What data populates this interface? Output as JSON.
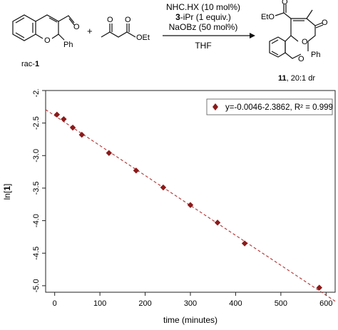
{
  "scheme": {
    "reagents": {
      "line1": "NHC.HX (10 mol%)",
      "line2_bold": "3",
      "line2_rest": "-iPr (1 equiv.)",
      "line3": "NaOBz (50 mol%)",
      "solvent": "THF"
    },
    "starting_material": {
      "label_prefix": "rac-",
      "label_bold": "1",
      "ph": "Ph",
      "o_ring": "O",
      "o_aldehyde": "O"
    },
    "plus": "+",
    "ketoester": {
      "o1": "O",
      "o2": "O",
      "oet": "OEt"
    },
    "product": {
      "label_bold": "11",
      "label_rest": ", 20:1 dr",
      "eto": "EtO",
      "ph": "Ph",
      "o_ring": "O",
      "o_lactone": "O",
      "o_carbonyl1": "O",
      "o_carbonyl2": "O"
    }
  },
  "chart_data": {
    "type": "scatter",
    "title": "",
    "xlabel": "time (minutes)",
    "ylabel_prefix": "ln[",
    "ylabel_bold": "1",
    "ylabel_suffix": "]",
    "xlim": [
      -20,
      620
    ],
    "ylim": [
      -5.1,
      -2.0
    ],
    "xticks": [
      0,
      100,
      200,
      300,
      400,
      500,
      600
    ],
    "yticks": [
      -2.0,
      -2.5,
      -3.0,
      -3.5,
      -4.0,
      -4.5,
      -5.0
    ],
    "xtick_labels": [
      "0",
      "100",
      "200",
      "300",
      "400",
      "500",
      "600"
    ],
    "ytick_labels": [
      "-2.0",
      "-2.5",
      "-3.0",
      "-3.5",
      "-4.0",
      "-4.5",
      "-5.0"
    ],
    "series": [
      {
        "x": [
          5,
          20,
          40,
          60,
          120,
          180,
          240,
          300,
          360,
          420,
          585
        ],
        "y": [
          -2.37,
          -2.44,
          -2.57,
          -2.68,
          -2.96,
          -3.23,
          -3.49,
          -3.76,
          -4.03,
          -4.35,
          -5.03
        ],
        "color": "#8b1a1a",
        "marker": "diamond"
      }
    ],
    "trendline": {
      "slope": -0.0046,
      "intercept": -2.3862,
      "color": "#b03030",
      "dash": "dashed"
    },
    "legend": {
      "text": "y=-0.0046-2.3862, R² = 0.999",
      "position": "top-right"
    },
    "grid": false
  }
}
